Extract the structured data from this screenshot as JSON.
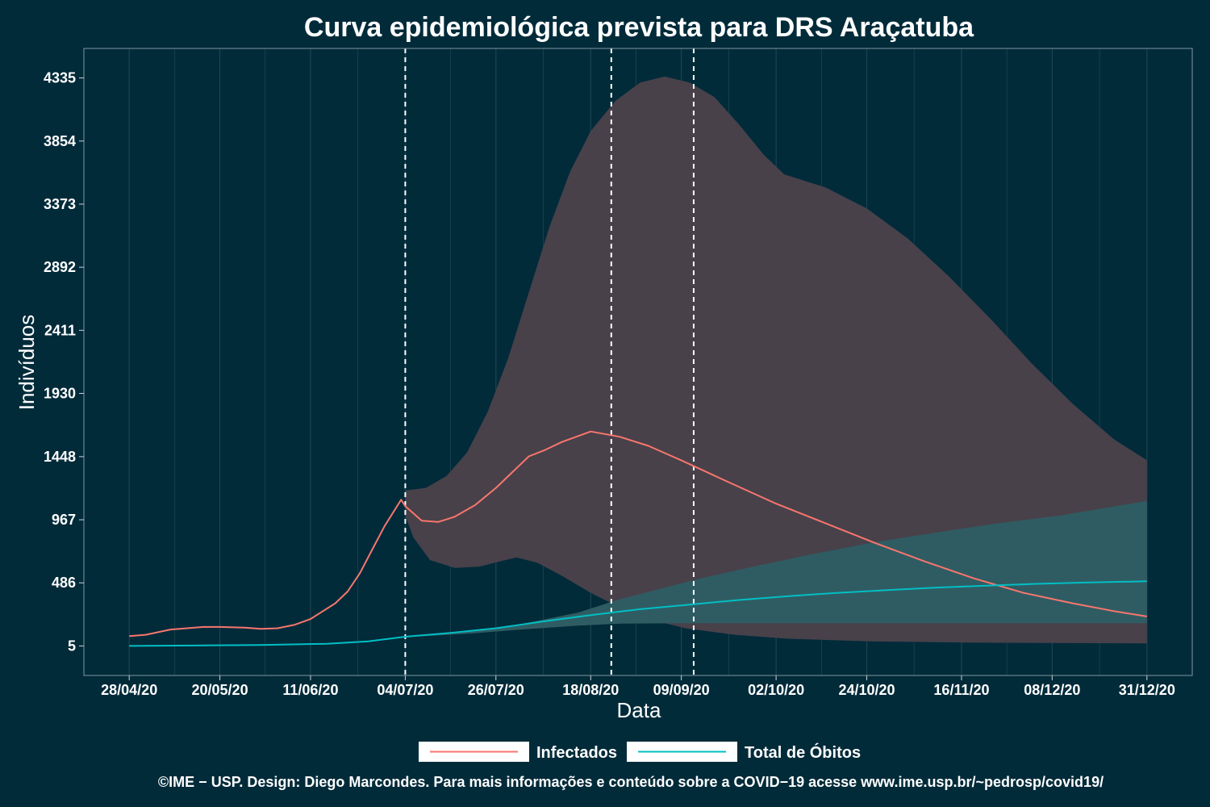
{
  "chart_data": {
    "type": "line",
    "title": "Curva epidemiológica prevista para DRS Araçatuba",
    "xlabel": "Data",
    "ylabel": "Indivíduos",
    "x_start": "2020-04-28",
    "x_end": "2020-12-31",
    "xlim": [
      "2020-04-17",
      "2021-01-11"
    ],
    "ylim": [
      -220,
      4560
    ],
    "x_ticks": [
      "28/04/20",
      "20/05/20",
      "11/06/20",
      "04/07/20",
      "26/07/20",
      "18/08/20",
      "09/09/20",
      "02/10/20",
      "24/10/20",
      "16/11/20",
      "08/12/20",
      "31/12/20"
    ],
    "y_ticks": [
      5,
      486,
      967,
      1448,
      1930,
      2411,
      2892,
      3373,
      3854,
      4335
    ],
    "vlines": [
      "2020-07-04",
      "2020-08-23",
      "2020-09-12"
    ],
    "grid": true,
    "legend_position": "bottom",
    "series": [
      {
        "name": "Infectados",
        "color": "#f8766d",
        "points": [
          [
            "2020-04-28",
            80
          ],
          [
            "2020-05-02",
            90
          ],
          [
            "2020-05-05",
            110
          ],
          [
            "2020-05-08",
            130
          ],
          [
            "2020-05-12",
            140
          ],
          [
            "2020-05-16",
            150
          ],
          [
            "2020-05-20",
            150
          ],
          [
            "2020-05-26",
            145
          ],
          [
            "2020-05-30",
            135
          ],
          [
            "2020-06-03",
            140
          ],
          [
            "2020-06-07",
            165
          ],
          [
            "2020-06-11",
            210
          ],
          [
            "2020-06-14",
            270
          ],
          [
            "2020-06-17",
            330
          ],
          [
            "2020-06-20",
            420
          ],
          [
            "2020-06-23",
            560
          ],
          [
            "2020-06-26",
            740
          ],
          [
            "2020-06-29",
            920
          ],
          [
            "2020-07-03",
            1120
          ],
          [
            "2020-07-04",
            1070
          ],
          [
            "2020-07-08",
            960
          ],
          [
            "2020-07-12",
            950
          ],
          [
            "2020-07-16",
            990
          ],
          [
            "2020-07-21",
            1080
          ],
          [
            "2020-07-26",
            1210
          ],
          [
            "2020-07-31",
            1360
          ],
          [
            "2020-08-03",
            1450
          ],
          [
            "2020-08-07",
            1500
          ],
          [
            "2020-08-11",
            1560
          ],
          [
            "2020-08-18",
            1640
          ],
          [
            "2020-08-25",
            1600
          ],
          [
            "2020-09-01",
            1530
          ],
          [
            "2020-09-09",
            1420
          ],
          [
            "2020-09-20",
            1260
          ],
          [
            "2020-10-02",
            1090
          ],
          [
            "2020-10-14",
            940
          ],
          [
            "2020-10-26",
            790
          ],
          [
            "2020-11-07",
            650
          ],
          [
            "2020-11-19",
            520
          ],
          [
            "2020-12-01",
            410
          ],
          [
            "2020-12-13",
            330
          ],
          [
            "2020-12-23",
            270
          ],
          [
            "2020-12-31",
            230
          ]
        ]
      },
      {
        "name": "Total de Óbitos",
        "color": "#00bfc4",
        "points": [
          [
            "2020-04-28",
            5
          ],
          [
            "2020-05-14",
            8
          ],
          [
            "2020-05-30",
            12
          ],
          [
            "2020-06-15",
            22
          ],
          [
            "2020-06-25",
            40
          ],
          [
            "2020-07-04",
            75
          ],
          [
            "2020-07-15",
            105
          ],
          [
            "2020-07-26",
            140
          ],
          [
            "2020-08-06",
            190
          ],
          [
            "2020-08-18",
            240
          ],
          [
            "2020-08-30",
            285
          ],
          [
            "2020-09-11",
            320
          ],
          [
            "2020-09-23",
            355
          ],
          [
            "2020-10-05",
            385
          ],
          [
            "2020-10-17",
            410
          ],
          [
            "2020-10-29",
            430
          ],
          [
            "2020-11-10",
            450
          ],
          [
            "2020-11-22",
            465
          ],
          [
            "2020-12-04",
            478
          ],
          [
            "2020-12-16",
            488
          ],
          [
            "2020-12-31",
            498
          ]
        ]
      }
    ],
    "bands": [
      {
        "series": "Infectados",
        "color": "#48414a",
        "upper": [
          [
            "2020-07-04",
            1190
          ],
          [
            "2020-07-09",
            1210
          ],
          [
            "2020-07-14",
            1300
          ],
          [
            "2020-07-19",
            1480
          ],
          [
            "2020-07-24",
            1790
          ],
          [
            "2020-07-29",
            2200
          ],
          [
            "2020-08-03",
            2700
          ],
          [
            "2020-08-08",
            3200
          ],
          [
            "2020-08-13",
            3620
          ],
          [
            "2020-08-18",
            3930
          ],
          [
            "2020-08-24",
            4160
          ],
          [
            "2020-08-30",
            4300
          ],
          [
            "2020-09-05",
            4345
          ],
          [
            "2020-09-11",
            4300
          ],
          [
            "2020-09-17",
            4190
          ],
          [
            "2020-09-23",
            3980
          ],
          [
            "2020-09-29",
            3750
          ],
          [
            "2020-10-04",
            3600
          ],
          [
            "2020-10-14",
            3500
          ],
          [
            "2020-10-24",
            3340
          ],
          [
            "2020-11-03",
            3110
          ],
          [
            "2020-11-13",
            2820
          ],
          [
            "2020-11-23",
            2500
          ],
          [
            "2020-12-03",
            2160
          ],
          [
            "2020-12-13",
            1850
          ],
          [
            "2020-12-23",
            1580
          ],
          [
            "2020-12-31",
            1420
          ]
        ],
        "lower": [
          [
            "2020-07-04",
            1000
          ],
          [
            "2020-07-06",
            830
          ],
          [
            "2020-07-10",
            660
          ],
          [
            "2020-07-16",
            600
          ],
          [
            "2020-07-22",
            610
          ],
          [
            "2020-07-27",
            650
          ],
          [
            "2020-07-31",
            680
          ],
          [
            "2020-08-05",
            640
          ],
          [
            "2020-08-11",
            540
          ],
          [
            "2020-08-18",
            410
          ],
          [
            "2020-08-25",
            300
          ],
          [
            "2020-09-01",
            210
          ],
          [
            "2020-09-10",
            140
          ],
          [
            "2020-09-22",
            90
          ],
          [
            "2020-10-05",
            60
          ],
          [
            "2020-10-25",
            40
          ],
          [
            "2020-11-20",
            30
          ],
          [
            "2020-12-31",
            25
          ]
        ]
      },
      {
        "series": "Total de Óbitos",
        "color": "#2f5c63",
        "upper": [
          [
            "2020-07-04",
            78
          ],
          [
            "2020-07-20",
            120
          ],
          [
            "2020-08-01",
            170
          ],
          [
            "2020-08-15",
            260
          ],
          [
            "2020-08-25",
            360
          ],
          [
            "2020-09-05",
            450
          ],
          [
            "2020-09-15",
            530
          ],
          [
            "2020-09-28",
            620
          ],
          [
            "2020-10-10",
            700
          ],
          [
            "2020-10-25",
            790
          ],
          [
            "2020-11-10",
            870
          ],
          [
            "2020-11-25",
            940
          ],
          [
            "2020-12-10",
            1000
          ],
          [
            "2020-12-31",
            1110
          ]
        ],
        "lower": [
          [
            "2020-07-04",
            72
          ],
          [
            "2020-07-20",
            100
          ],
          [
            "2020-08-01",
            130
          ],
          [
            "2020-08-15",
            160
          ],
          [
            "2020-08-25",
            175
          ],
          [
            "2020-09-10",
            178
          ],
          [
            "2020-10-10",
            178
          ],
          [
            "2020-11-10",
            178
          ],
          [
            "2020-12-31",
            178
          ]
        ]
      }
    ],
    "caption": "©IME − USP. Design: Diego Marcondes. Para mais informações e conteúdo sobre a COVID−19 acesse www.ime.usp.br/~pedrosp/covid19/"
  },
  "colors": {
    "background": "#022b3a",
    "grid": "#1d4350",
    "vline": "#ffffff"
  }
}
